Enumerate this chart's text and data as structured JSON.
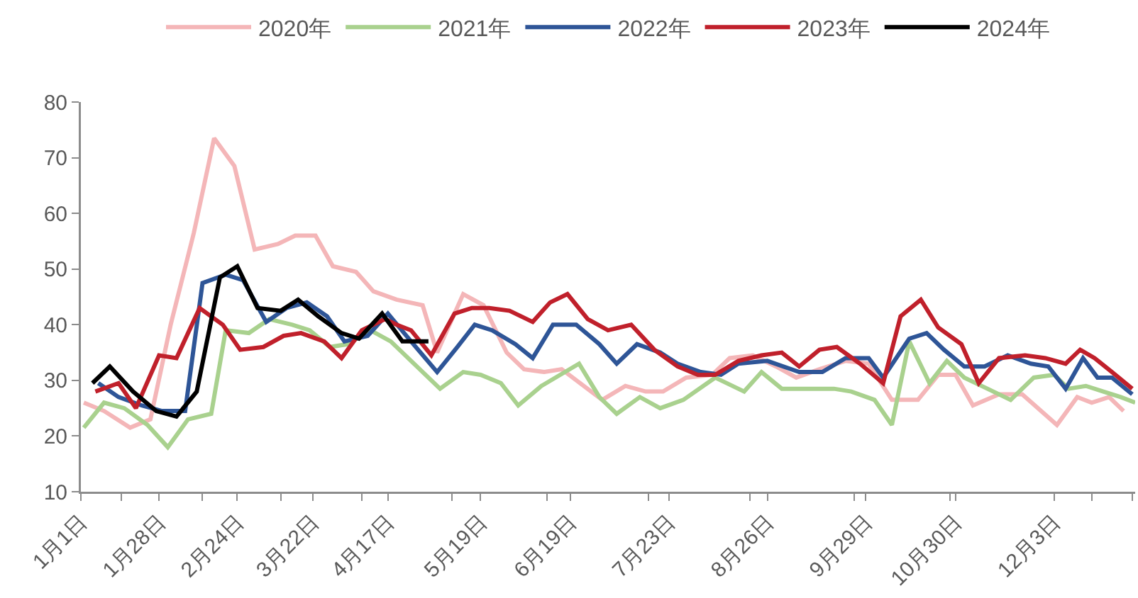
{
  "chart_data": {
    "type": "line",
    "legend": "top",
    "grid": false,
    "marker": "none",
    "line_style": "solid",
    "xlim": [
      "--01-01",
      "--12-31"
    ],
    "ylim": [
      10,
      80
    ],
    "yticks": [
      10,
      20,
      30,
      40,
      50,
      60,
      70,
      80
    ],
    "xticks": [
      {
        "value": "--01-01",
        "label": "1月1日"
      },
      {
        "value": "--01-28",
        "label": "1月28日"
      },
      {
        "value": "--02-24",
        "label": "2月24日"
      },
      {
        "value": "--03-22",
        "label": "3月22日"
      },
      {
        "value": "--04-17",
        "label": "4月17日"
      },
      {
        "value": "--05-19",
        "label": "5月19日"
      },
      {
        "value": "--06-19",
        "label": "6月19日"
      },
      {
        "value": "--07-23",
        "label": "7月23日"
      },
      {
        "value": "--08-26",
        "label": "8月26日"
      },
      {
        "value": "--09-29",
        "label": "9月29日"
      },
      {
        "value": "--10-30",
        "label": "10月30日"
      },
      {
        "value": "--12-03",
        "label": "12月3日"
      },
      {
        "value": "--01-15",
        "label": null
      },
      {
        "value": "--02-12",
        "label": null
      },
      {
        "value": "--03-11",
        "label": null
      },
      {
        "value": "--04-08",
        "label": null
      },
      {
        "value": "--05-09",
        "label": null
      },
      {
        "value": "--06-11",
        "label": null
      },
      {
        "value": "--07-16",
        "label": null
      },
      {
        "value": "--08-20",
        "label": null
      },
      {
        "value": "--09-25",
        "label": null
      },
      {
        "value": "--10-28",
        "label": null
      },
      {
        "value": "--12-16",
        "label": null
      },
      {
        "value": "--12-30",
        "label": null
      }
    ],
    "series": [
      {
        "name": "2020年",
        "color": "#f4b6b8",
        "x": [
          "--01-02",
          "--01-09",
          "--01-18",
          "--01-25",
          "--02-01",
          "--02-09",
          "--02-16",
          "--02-23",
          "--03-02",
          "--03-10",
          "--03-16",
          "--03-23",
          "--03-29",
          "--04-06",
          "--04-12",
          "--04-20",
          "--04-29",
          "--05-04",
          "--05-13",
          "--05-20",
          "--05-28",
          "--06-03",
          "--06-10",
          "--06-16",
          "--06-30",
          "--07-08",
          "--07-15",
          "--07-21",
          "--07-29",
          "--08-07",
          "--08-13",
          "--08-21",
          "--08-29",
          "--09-05",
          "--09-13",
          "--09-22",
          "--09-30",
          "--10-08",
          "--10-17",
          "--10-24",
          "--10-30",
          "--11-05",
          "--11-14",
          "--11-22",
          "--12-04",
          "--12-11",
          "--12-16",
          "--12-22",
          "--12-27"
        ],
        "values": [
          26,
          24.5,
          21.5,
          23,
          40,
          56.5,
          73.5,
          68.5,
          53.5,
          54.5,
          56,
          56,
          50.5,
          49.5,
          46,
          44.5,
          43.5,
          35,
          45.5,
          43.5,
          35,
          32,
          31.5,
          32,
          26.5,
          29,
          28,
          28,
          30.5,
          31,
          34,
          34.5,
          32.5,
          30.5,
          32,
          33.5,
          33,
          26.5,
          26.5,
          31,
          31,
          25.5,
          27.5,
          27.5,
          22,
          27,
          26,
          27,
          24.5
        ]
      },
      {
        "name": "2021年",
        "color": "#a9d18e",
        "x": [
          "--01-02",
          "--01-09",
          "--01-16",
          "--01-24",
          "--01-31",
          "--02-07",
          "--02-15",
          "--02-20",
          "--02-28",
          "--03-07",
          "--03-15",
          "--03-21",
          "--03-28",
          "--04-03",
          "--04-11",
          "--04-18",
          "--05-05",
          "--05-13",
          "--05-19",
          "--05-26",
          "--06-01",
          "--06-09",
          "--06-22",
          "--06-29",
          "--07-05",
          "--07-13",
          "--07-20",
          "--07-28",
          "--08-08",
          "--08-18",
          "--08-24",
          "--08-31",
          "--09-10",
          "--09-18",
          "--09-24",
          "--10-02",
          "--10-08",
          "--10-14",
          "--10-21",
          "--10-27",
          "--11-02",
          "--11-10",
          "--11-18",
          "--11-26",
          "--12-03",
          "--12-08",
          "--12-14",
          "--12-20",
          "--12-26",
          "--12-31"
        ],
        "values": [
          21.5,
          26,
          25,
          22,
          18,
          23,
          24,
          39,
          38.5,
          41,
          40,
          39,
          36,
          36.5,
          39,
          37,
          28.5,
          31.5,
          31,
          29.5,
          25.5,
          29,
          33,
          27,
          24,
          27,
          25,
          26.5,
          30.5,
          28,
          31.5,
          28.5,
          28.5,
          28.5,
          28,
          26.5,
          22,
          37,
          29.5,
          33.5,
          30.5,
          28.5,
          26.5,
          30.5,
          31,
          28.5,
          29,
          28,
          27,
          26
        ]
      },
      {
        "name": "2022年",
        "color": "#2e5597",
        "x": [
          "--01-07",
          "--01-14",
          "--01-22",
          "--01-29",
          "--02-06",
          "--02-12",
          "--02-20",
          "--02-26",
          "--03-06",
          "--03-13",
          "--03-20",
          "--03-27",
          "--04-02",
          "--04-10",
          "--04-17",
          "--04-25",
          "--05-04",
          "--05-11",
          "--05-17",
          "--05-23",
          "--05-31",
          "--06-06",
          "--06-13",
          "--06-21",
          "--06-29",
          "--07-05",
          "--07-12",
          "--07-20",
          "--07-26",
          "--08-03",
          "--08-10",
          "--08-16",
          "--08-26",
          "--09-06",
          "--09-14",
          "--09-22",
          "--09-30",
          "--10-05",
          "--10-14",
          "--10-20",
          "--10-26",
          "--11-02",
          "--11-09",
          "--11-17",
          "--11-25",
          "--12-01",
          "--12-07",
          "--12-13",
          "--12-18",
          "--12-23",
          "--12-30"
        ],
        "values": [
          29.5,
          27,
          25.5,
          24.5,
          24.5,
          47.5,
          49,
          48,
          40.5,
          43,
          44,
          41.5,
          37,
          38,
          42,
          37,
          31.5,
          36,
          40,
          39,
          36.5,
          34,
          40,
          40,
          36.5,
          33,
          36.5,
          35,
          33,
          31.5,
          31,
          33,
          33.5,
          31.5,
          31.5,
          34,
          34,
          30.5,
          37.5,
          38.5,
          35.5,
          32.5,
          32.5,
          34.5,
          33,
          32.5,
          28.5,
          34,
          30.5,
          30.5,
          27.5
        ]
      },
      {
        "name": "2023年",
        "color": "#c0202b",
        "x": [
          "--01-06",
          "--01-14",
          "--01-20",
          "--01-28",
          "--02-03",
          "--02-11",
          "--02-19",
          "--02-25",
          "--03-05",
          "--03-12",
          "--03-18",
          "--03-26",
          "--04-01",
          "--04-08",
          "--04-16",
          "--04-20",
          "--04-25",
          "--05-02",
          "--05-10",
          "--05-16",
          "--05-22",
          "--05-29",
          "--06-06",
          "--06-12",
          "--06-18",
          "--06-25",
          "--07-02",
          "--07-10",
          "--07-18",
          "--07-26",
          "--08-02",
          "--08-08",
          "--08-16",
          "--08-24",
          "--08-31",
          "--09-06",
          "--09-13",
          "--09-19",
          "--09-27",
          "--10-05",
          "--10-11",
          "--10-18",
          "--10-24",
          "--11-01",
          "--11-07",
          "--11-14",
          "--11-23",
          "--11-30",
          "--12-07",
          "--12-12",
          "--12-17",
          "--12-23",
          "--12-30"
        ],
        "values": [
          28,
          29.5,
          25,
          34.5,
          34,
          43,
          40,
          35.5,
          36,
          38,
          38.5,
          37,
          34,
          39,
          41,
          40,
          39,
          34.5,
          42,
          43,
          43,
          42.5,
          40.5,
          44,
          45.5,
          41,
          39,
          40,
          35.5,
          32.5,
          31,
          31,
          33.5,
          34.5,
          35,
          32.5,
          35.5,
          36,
          33,
          29.5,
          41.5,
          44.5,
          39.5,
          36.5,
          29.5,
          34,
          34.5,
          34,
          33,
          35.5,
          34,
          31.5,
          28.5
        ]
      },
      {
        "name": "2024年",
        "color": "#000000",
        "x": [
          "--01-05",
          "--01-11",
          "--01-19",
          "--01-27",
          "--02-03",
          "--02-10",
          "--02-18",
          "--02-24",
          "--03-03",
          "--03-11",
          "--03-17",
          "--03-24",
          "--04-01",
          "--04-07",
          "--04-15",
          "--04-22",
          "--05-01"
        ],
        "values": [
          29.5,
          32.5,
          28,
          24.5,
          23.5,
          28,
          48.5,
          50.5,
          43,
          42.5,
          44.5,
          41.5,
          38.5,
          37.5,
          42,
          37,
          37
        ]
      }
    ]
  }
}
